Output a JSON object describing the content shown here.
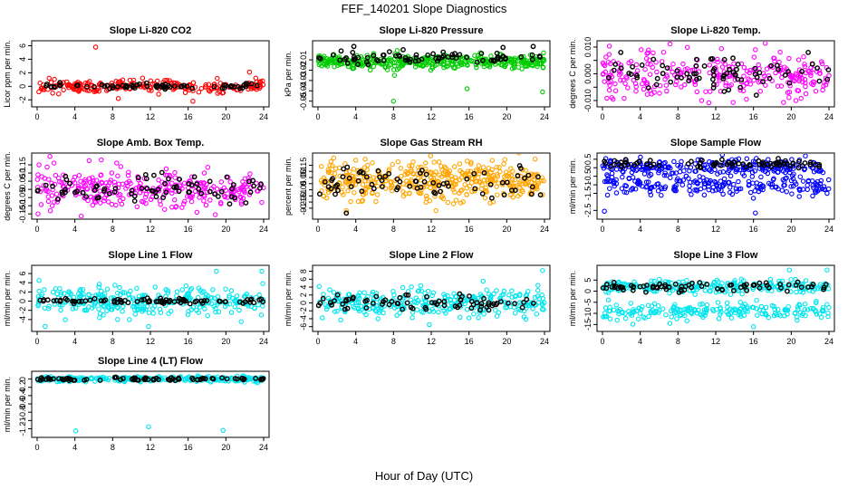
{
  "figure": {
    "title": "FEF_140201  Slope Diagnostics",
    "xlabel": "Hour of Day (UTC)"
  },
  "chart_data": [
    {
      "type": "scatter",
      "title": "Slope Li-820 CO2",
      "ylabel": "Licor ppm per min.",
      "xlim": [
        0,
        24
      ],
      "ylim": [
        -2.5,
        6.2
      ],
      "xticks": [
        "0",
        "4",
        "8",
        "12",
        "16",
        "20",
        "24"
      ],
      "yticks": [
        -2,
        0,
        2,
        4,
        6
      ],
      "colors": {
        "all": "#ff0000",
        "selected": "#000000"
      },
      "series": [
        {
          "role": "all",
          "center": 0.0,
          "spread": 0.45,
          "count": 220,
          "points": [
            [
              6.2,
              5.8
            ],
            [
              22.5,
              2.1
            ],
            [
              8.6,
              -1.8
            ],
            [
              16.5,
              -2.2
            ]
          ]
        },
        {
          "role": "selected",
          "center": 0.0,
          "spread": 0.2,
          "count": 70,
          "points": []
        }
      ]
    },
    {
      "type": "scatter",
      "title": "Slope Li-820 Pressure",
      "ylabel": "kPa per min.",
      "xlim": [
        0,
        24
      ],
      "ylim": [
        -0.052,
        0.005
      ],
      "xticks": [
        "0",
        "4",
        "8",
        "12",
        "16",
        "20",
        "24"
      ],
      "yticks": [
        -0.05,
        -0.04,
        -0.03,
        -0.02,
        -0.01
      ],
      "colors": {
        "all": "#00cc00",
        "selected": "#000000"
      },
      "series": [
        {
          "role": "all",
          "center": -0.012,
          "spread": 0.003,
          "count": 380,
          "points": [
            [
              8.0,
              -0.05
            ],
            [
              15.8,
              -0.038
            ],
            [
              23.8,
              -0.041
            ],
            [
              3.8,
              -0.018
            ],
            [
              8.1,
              -0.025
            ]
          ]
        },
        {
          "role": "selected",
          "center": -0.008,
          "spread": 0.003,
          "count": 75,
          "points": [
            [
              3.8,
              0.003
            ],
            [
              19.6,
              0.002
            ],
            [
              22.8,
              0.003
            ]
          ]
        }
      ]
    },
    {
      "type": "scatter",
      "title": "Slope Li-820 Temp.",
      "ylabel": "degrees C per min.",
      "xlim": [
        0,
        24
      ],
      "ylim": [
        -0.011,
        0.011
      ],
      "xticks": [
        "0",
        "4",
        "8",
        "12",
        "16",
        "20",
        "24"
      ],
      "yticks": [
        -0.01,
        -0.005,
        0.0,
        0.005,
        0.01
      ],
      "ytickLabels": [
        "-0.010",
        "",
        "0.000",
        "",
        "0.010"
      ],
      "colors": {
        "all": "#ff00ff",
        "selected": "#000000"
      },
      "series": [
        {
          "role": "all",
          "center": 0.0,
          "spread": 0.0042,
          "count": 280,
          "points": [
            [
              4.1,
              0.009
            ],
            [
              16.2,
              0.009
            ],
            [
              10.5,
              -0.01
            ],
            [
              20.5,
              -0.01
            ]
          ]
        },
        {
          "role": "selected",
          "center": 0.0,
          "spread": 0.003,
          "count": 75,
          "points": [
            [
              21.8,
              0.008
            ],
            [
              16.3,
              -0.008
            ]
          ]
        }
      ]
    },
    {
      "type": "scatter",
      "title": "Slope Amb. Box Temp.",
      "ylabel": "degrees C per min.",
      "xlim": [
        0,
        24
      ],
      "ylim": [
        -0.16,
        0.2
      ],
      "xticks": [
        "0",
        "4",
        "8",
        "12",
        "16",
        "20",
        "24"
      ],
      "yticks": [
        -0.15,
        -0.1,
        -0.05,
        0.0,
        0.05,
        0.1,
        0.15
      ],
      "colors": {
        "all": "#ff00ff",
        "selected": "#000000"
      },
      "series": [
        {
          "role": "all",
          "center": 0.0,
          "spread": 0.06,
          "count": 300,
          "points": [
            [
              0.2,
              0.15
            ],
            [
              6.8,
              0.18
            ],
            [
              0.1,
              -0.15
            ],
            [
              23.8,
              -0.08
            ]
          ]
        },
        {
          "role": "selected",
          "center": 0.0,
          "spread": 0.05,
          "count": 75,
          "points": [
            [
              3.0,
              0.08
            ],
            [
              11.5,
              0.09
            ]
          ]
        }
      ]
    },
    {
      "type": "scatter",
      "title": "Slope Gas Stream RH",
      "ylabel": "percent per min.",
      "xlim": [
        0,
        24
      ],
      "ylim": [
        -0.26,
        0.22
      ],
      "xticks": [
        "0",
        "4",
        "8",
        "12",
        "16",
        "20",
        "24"
      ],
      "yticks": [
        -0.2,
        -0.15,
        -0.1,
        -0.05,
        0.0,
        0.05,
        0.1,
        0.15
      ],
      "colors": {
        "all": "#ffa500",
        "selected": "#000000"
      },
      "series": [
        {
          "role": "all",
          "center": 0.02,
          "spread": 0.075,
          "count": 420,
          "points": [
            [
              5.0,
              0.2
            ],
            [
              23.0,
              0.2
            ],
            [
              3.0,
              -0.22
            ],
            [
              12.5,
              -0.22
            ],
            [
              16.2,
              0.16
            ]
          ]
        },
        {
          "role": "selected",
          "center": 0.0,
          "spread": 0.06,
          "count": 70,
          "points": [
            [
              2.7,
              0.12
            ],
            [
              3.0,
              -0.24
            ]
          ]
        }
      ]
    },
    {
      "type": "scatter",
      "title": "Slope Sample Flow",
      "ylabel": "ml/min per min.",
      "xlim": [
        0,
        24
      ],
      "ylim": [
        -2.8,
        0.65
      ],
      "xticks": [
        "0",
        "4",
        "8",
        "12",
        "16",
        "20",
        "24"
      ],
      "yticks": [
        -2.5,
        -1.5,
        -1.0,
        -0.5,
        0.0,
        0.5
      ],
      "colors": {
        "all": "#0000ff",
        "selected": "#000000"
      },
      "series": [
        {
          "role": "all",
          "center": 0.05,
          "spread": 0.22,
          "count": 230,
          "points": [
            [
              0.2,
              -2.55
            ],
            [
              16.2,
              -2.65
            ],
            [
              16.3,
              0.55
            ],
            [
              23.8,
              -1.5
            ]
          ]
        },
        {
          "role": "all-lower",
          "center": -1.0,
          "spread": 0.3,
          "count": 220,
          "points": []
        },
        {
          "role": "selected",
          "center": 0.25,
          "spread": 0.12,
          "count": 75,
          "points": []
        }
      ]
    },
    {
      "type": "scatter",
      "title": "Slope Line 1 Flow",
      "ylabel": "ml/min per min.",
      "xlim": [
        0,
        24
      ],
      "ylim": [
        -5.8,
        7.0
      ],
      "xticks": [
        "0",
        "4",
        "8",
        "12",
        "16",
        "20",
        "24"
      ],
      "yticks": [
        -4,
        -2,
        0,
        2,
        4,
        6
      ],
      "colors": {
        "all": "#00e5ee",
        "selected": "#000000"
      },
      "series": [
        {
          "role": "all",
          "center": 0.0,
          "spread": 1.6,
          "count": 300,
          "points": [
            [
              19.0,
              6.5
            ],
            [
              23.8,
              6.5
            ],
            [
              11.8,
              -5.5
            ],
            [
              0.2,
              4.5
            ]
          ]
        },
        {
          "role": "selected",
          "center": 0.0,
          "spread": 0.25,
          "count": 85,
          "points": []
        }
      ]
    },
    {
      "type": "scatter",
      "title": "Slope Line 2 Flow",
      "ylabel": "ml/min per min.",
      "xlim": [
        0,
        24
      ],
      "ylim": [
        -6.3,
        8.6
      ],
      "xticks": [
        "0",
        "4",
        "8",
        "12",
        "16",
        "20",
        "24"
      ],
      "yticks": [
        -6,
        -4,
        -2,
        0,
        2,
        4,
        6,
        8
      ],
      "colors": {
        "all": "#00e5ee",
        "selected": "#000000"
      },
      "series": [
        {
          "role": "all",
          "center": 0.0,
          "spread": 1.6,
          "count": 300,
          "points": [
            [
              23.8,
              8.2
            ],
            [
              17.5,
              5.5
            ],
            [
              11.8,
              -5.5
            ],
            [
              16.0,
              -3.8
            ]
          ]
        },
        {
          "role": "selected",
          "center": 0.0,
          "spread": 1.0,
          "count": 75,
          "points": []
        }
      ]
    },
    {
      "type": "scatter",
      "title": "Slope Line 3 Flow",
      "ylabel": "ml/min per min.",
      "xlim": [
        0,
        24
      ],
      "ylim": [
        -16.5,
        10.0
      ],
      "xticks": [
        "0",
        "4",
        "8",
        "12",
        "16",
        "20",
        "24"
      ],
      "yticks": [
        -15,
        -10,
        -5,
        0,
        5
      ],
      "colors": {
        "all": "#00e5ee",
        "selected": "#000000"
      },
      "series": [
        {
          "role": "all",
          "center": 2.0,
          "spread": 1.4,
          "count": 250,
          "points": [
            [
              19.8,
              9.5
            ],
            [
              23.8,
              9.5
            ],
            [
              16.0,
              -16.0
            ],
            [
              3.8,
              -12.5
            ]
          ]
        },
        {
          "role": "all-lower",
          "center": -9.0,
          "spread": 1.8,
          "count": 210,
          "points": []
        },
        {
          "role": "selected",
          "center": 2.0,
          "spread": 1.0,
          "count": 75,
          "points": []
        }
      ]
    },
    {
      "type": "scatter",
      "title": "Slope Line 4 (LT) Flow",
      "ylabel": "ml/min per min.",
      "xlim": [
        0,
        24
      ],
      "ylim": [
        -1.32,
        0.1
      ],
      "xticks": [
        "0",
        "4",
        "8",
        "12",
        "16",
        "20",
        "24"
      ],
      "yticks": [
        -1.2,
        -1.0,
        -0.8,
        -0.6,
        -0.4,
        -0.2,
        0.0
      ],
      "colors": {
        "all": "#00e5ee",
        "selected": "#000000"
      },
      "series": [
        {
          "role": "all",
          "center": 0.0,
          "spread": 0.03,
          "count": 300,
          "points": [
            [
              4.1,
              -1.25
            ],
            [
              11.8,
              -1.15
            ],
            [
              19.7,
              -1.24
            ]
          ]
        },
        {
          "role": "selected",
          "center": 0.0,
          "spread": 0.02,
          "count": 80,
          "points": []
        }
      ]
    }
  ]
}
